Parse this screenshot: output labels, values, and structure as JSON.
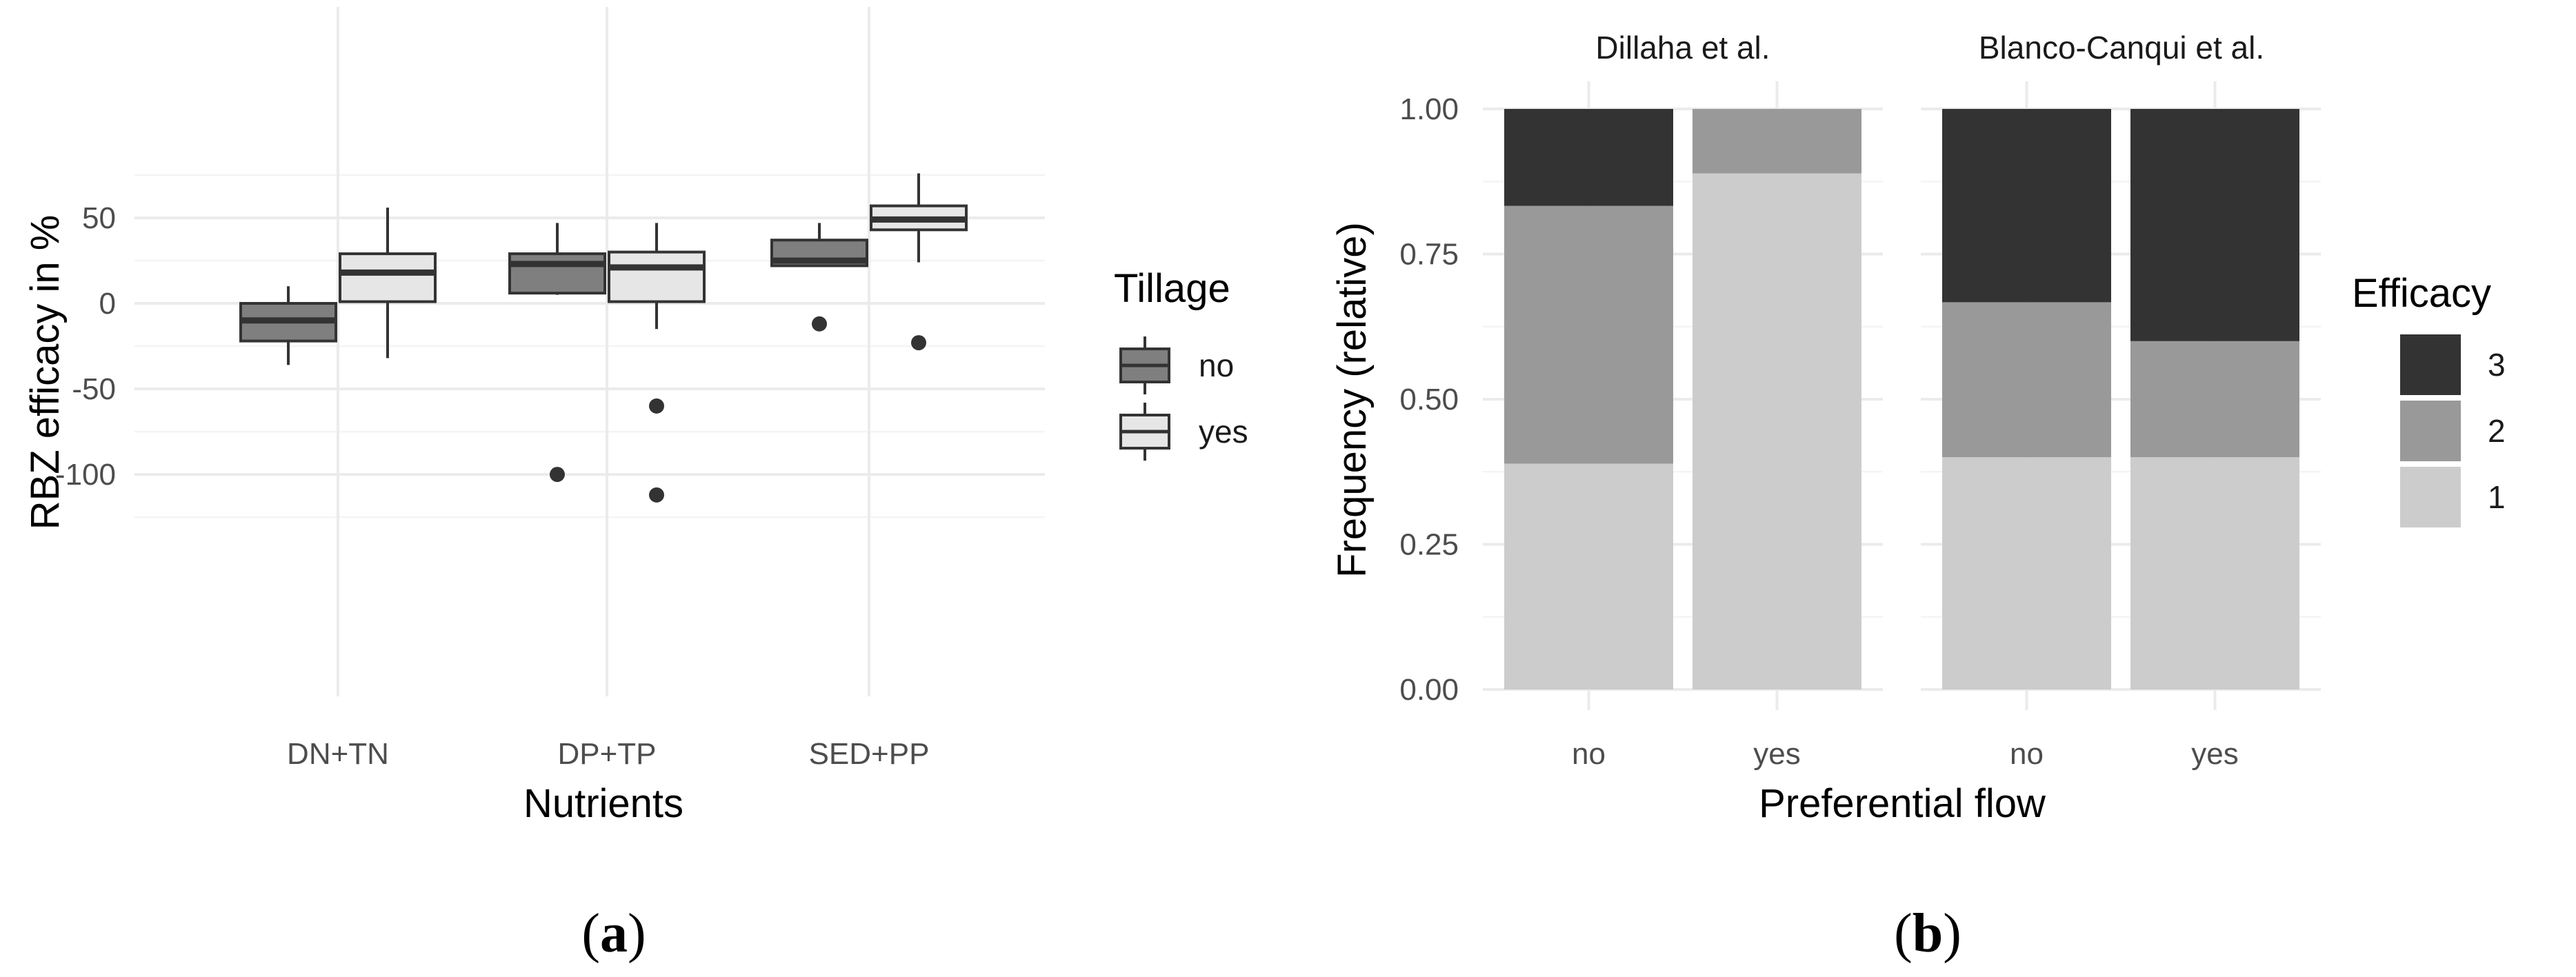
{
  "chart_data": [
    {
      "type": "boxplot",
      "caption_letter": "a",
      "xlabel": "Nutrients",
      "ylabel": "RBZ efficacy in %",
      "ylim": [
        -120,
        75
      ],
      "yticks": [
        -100,
        -50,
        0,
        50
      ],
      "ytick_labels": [
        "-100",
        "-50",
        "0",
        "50"
      ],
      "categories": [
        "DN+TN",
        "DP+TP",
        "SED+PP"
      ],
      "legend": {
        "title": "Tillage",
        "placement": "right"
      },
      "series": [
        {
          "name": "no",
          "color": "#7f7f7f",
          "boxes": [
            {
              "min": -36,
              "q1": -22,
              "median": -10,
              "q3": 0,
              "max": 10,
              "outliers": []
            },
            {
              "min": 5,
              "q1": 6,
              "median": 23,
              "q3": 29,
              "max": 47,
              "outliers": [
                -100
              ]
            },
            {
              "min": 22,
              "q1": 22,
              "median": 25,
              "q3": 37,
              "max": 47,
              "outliers": [
                -12
              ]
            }
          ]
        },
        {
          "name": "yes",
          "color": "#e6e6e6",
          "boxes": [
            {
              "min": -32,
              "q1": 1,
              "median": 18,
              "q3": 29,
              "max": 56,
              "outliers": []
            },
            {
              "min": -15,
              "q1": 1,
              "median": 21,
              "q3": 30,
              "max": 47,
              "outliers": [
                -60,
                -112
              ]
            },
            {
              "min": 24,
              "q1": 43,
              "median": 49,
              "q3": 57,
              "max": 76,
              "outliers": [
                -23
              ]
            }
          ]
        }
      ]
    },
    {
      "type": "stacked_bar",
      "caption_letter": "b",
      "xlabel": "Preferential flow",
      "ylabel": "Frequency (relative)",
      "ylim": [
        0,
        1
      ],
      "yticks": [
        0,
        0.25,
        0.5,
        0.75,
        1
      ],
      "ytick_labels": [
        "0.00",
        "0.25",
        "0.50",
        "0.75",
        "1.00"
      ],
      "legend": {
        "title": "Efficacy",
        "placement": "right"
      },
      "stack_order": [
        "1",
        "2",
        "3"
      ],
      "colors": {
        "1": "#cccccc",
        "2": "#999999",
        "3": "#333333"
      },
      "legend_items": [
        "3",
        "2",
        "1"
      ],
      "facets": [
        {
          "name": "Dillaha et al.",
          "categories": [
            "no",
            "yes"
          ],
          "series": [
            {
              "name": "1",
              "values": [
                0.389,
                0.889
              ]
            },
            {
              "name": "2",
              "values": [
                0.444,
                0.111
              ]
            },
            {
              "name": "3",
              "values": [
                0.167,
                0.0
              ]
            }
          ]
        },
        {
          "name": "Blanco-Canqui et al.",
          "categories": [
            "no",
            "yes"
          ],
          "series": [
            {
              "name": "1",
              "values": [
                0.4,
                0.4
              ]
            },
            {
              "name": "2",
              "values": [
                0.267,
                0.2
              ]
            },
            {
              "name": "3",
              "values": [
                0.333,
                0.4
              ]
            }
          ]
        }
      ]
    }
  ]
}
